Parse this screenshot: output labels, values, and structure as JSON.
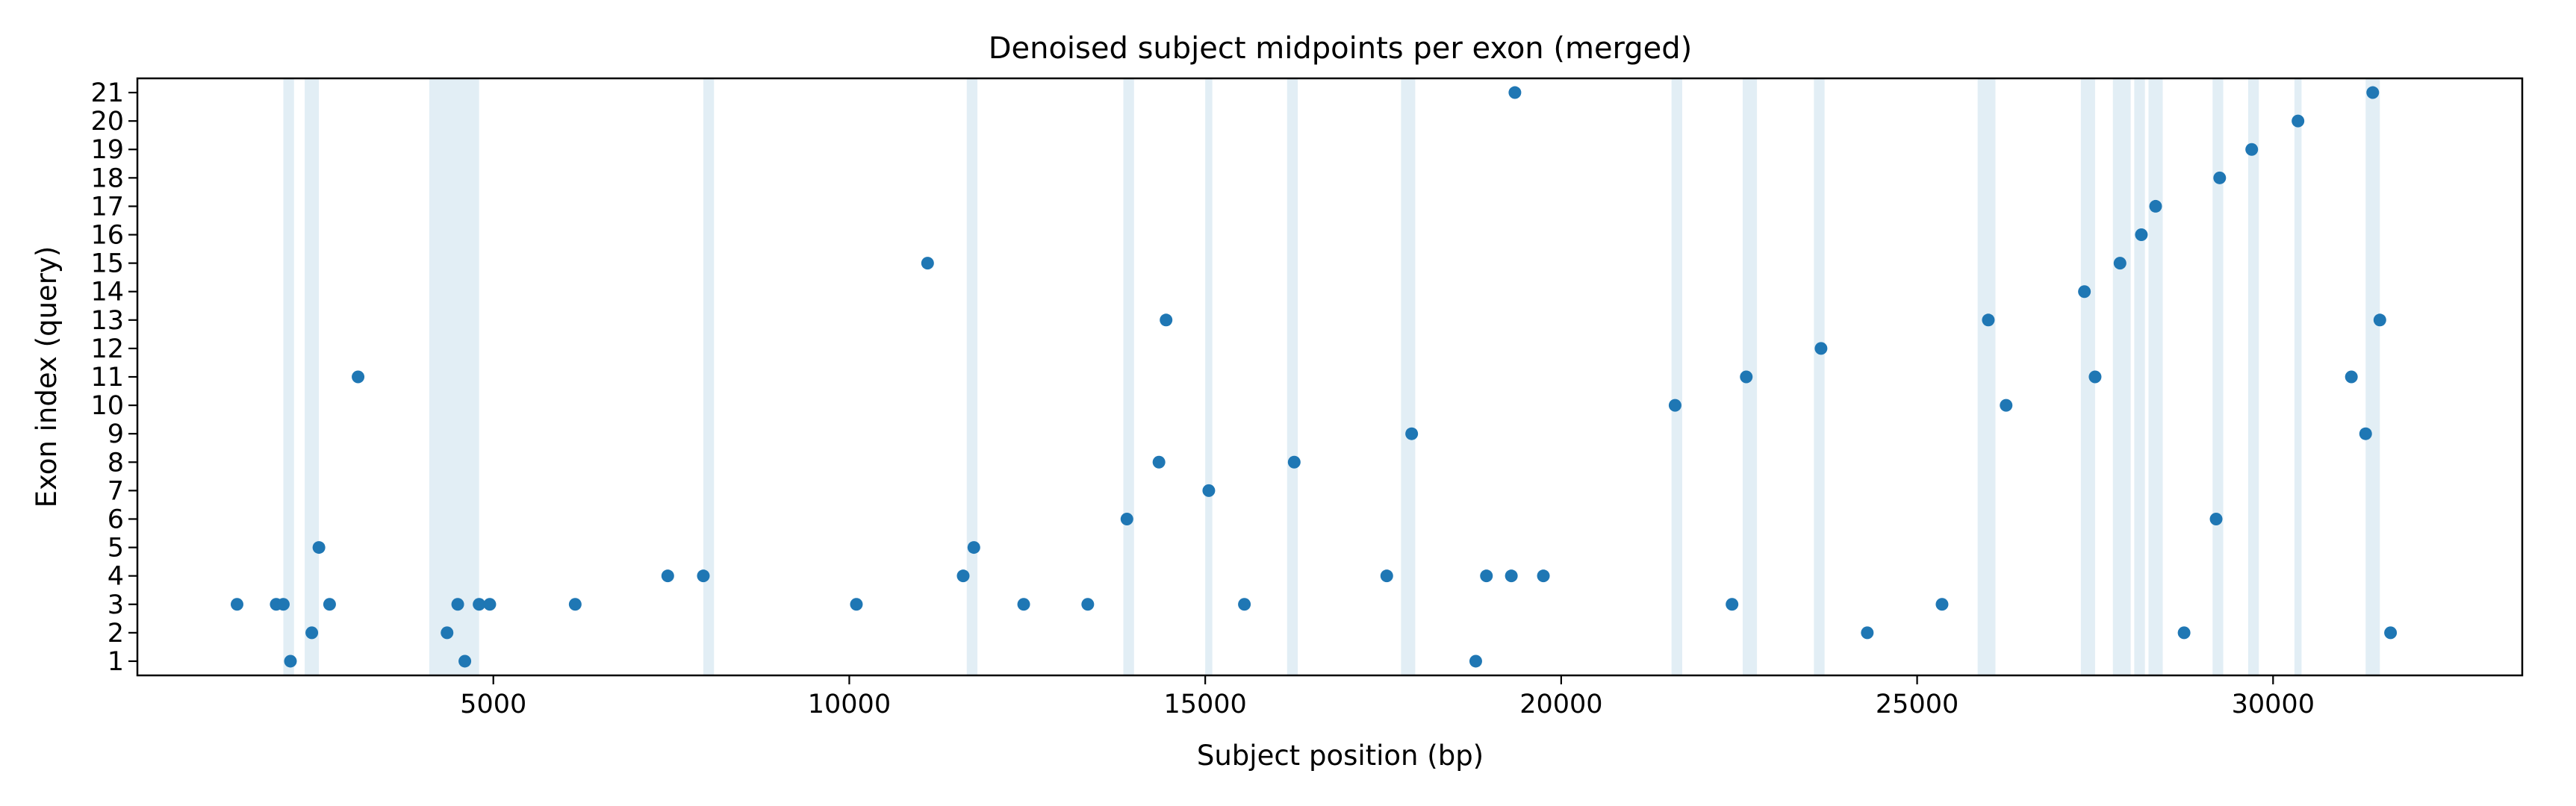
{
  "chart_data": {
    "type": "scatter",
    "title": "Denoised subject midpoints per exon (merged)",
    "xlabel": "Subject position (bp)",
    "ylabel": "Exon index (query)",
    "xlim": [
      0,
      33500
    ],
    "ylim": [
      0.5,
      21.5
    ],
    "xticks": [
      5000,
      10000,
      15000,
      20000,
      25000,
      30000
    ],
    "yticks": [
      1,
      2,
      3,
      4,
      5,
      6,
      7,
      8,
      9,
      10,
      11,
      12,
      13,
      14,
      15,
      16,
      17,
      18,
      19,
      20,
      21
    ],
    "grid": false,
    "legend": "none",
    "point_color": "#1f77b4",
    "band_color": "#cfe2ef",
    "shaded_regions": [
      [
        2050,
        2200
      ],
      [
        2350,
        2550
      ],
      [
        4100,
        4800
      ],
      [
        7950,
        8100
      ],
      [
        11650,
        11800
      ],
      [
        13850,
        14000
      ],
      [
        15000,
        15100
      ],
      [
        16150,
        16300
      ],
      [
        17750,
        17950
      ],
      [
        21550,
        21700
      ],
      [
        22550,
        22750
      ],
      [
        23550,
        23700
      ],
      [
        25850,
        26100
      ],
      [
        27300,
        27500
      ],
      [
        27750,
        28000
      ],
      [
        28050,
        28200
      ],
      [
        28250,
        28450
      ],
      [
        29150,
        29300
      ],
      [
        29650,
        29800
      ],
      [
        30300,
        30400
      ],
      [
        31300,
        31500
      ]
    ],
    "points": [
      {
        "x": 1400,
        "y": 3
      },
      {
        "x": 1950,
        "y": 3
      },
      {
        "x": 2050,
        "y": 3
      },
      {
        "x": 2150,
        "y": 1
      },
      {
        "x": 2450,
        "y": 2
      },
      {
        "x": 2550,
        "y": 5
      },
      {
        "x": 2700,
        "y": 3
      },
      {
        "x": 3100,
        "y": 11
      },
      {
        "x": 4350,
        "y": 2
      },
      {
        "x": 4500,
        "y": 3
      },
      {
        "x": 4600,
        "y": 1
      },
      {
        "x": 4800,
        "y": 3
      },
      {
        "x": 4950,
        "y": 3
      },
      {
        "x": 6150,
        "y": 3
      },
      {
        "x": 7450,
        "y": 4
      },
      {
        "x": 7950,
        "y": 4
      },
      {
        "x": 10100,
        "y": 3
      },
      {
        "x": 11100,
        "y": 15
      },
      {
        "x": 11600,
        "y": 4
      },
      {
        "x": 11750,
        "y": 5
      },
      {
        "x": 12450,
        "y": 3
      },
      {
        "x": 13350,
        "y": 3
      },
      {
        "x": 13900,
        "y": 6
      },
      {
        "x": 14350,
        "y": 8
      },
      {
        "x": 14450,
        "y": 13
      },
      {
        "x": 15050,
        "y": 7
      },
      {
        "x": 15550,
        "y": 3
      },
      {
        "x": 16250,
        "y": 8
      },
      {
        "x": 17550,
        "y": 4
      },
      {
        "x": 17900,
        "y": 9
      },
      {
        "x": 18800,
        "y": 1
      },
      {
        "x": 18950,
        "y": 4
      },
      {
        "x": 19300,
        "y": 4
      },
      {
        "x": 19350,
        "y": 21
      },
      {
        "x": 19750,
        "y": 4
      },
      {
        "x": 21600,
        "y": 10
      },
      {
        "x": 22400,
        "y": 3
      },
      {
        "x": 22600,
        "y": 11
      },
      {
        "x": 23650,
        "y": 12
      },
      {
        "x": 24300,
        "y": 2
      },
      {
        "x": 25350,
        "y": 3
      },
      {
        "x": 26000,
        "y": 13
      },
      {
        "x": 26250,
        "y": 10
      },
      {
        "x": 27350,
        "y": 14
      },
      {
        "x": 27500,
        "y": 11
      },
      {
        "x": 27850,
        "y": 15
      },
      {
        "x": 28150,
        "y": 16
      },
      {
        "x": 28350,
        "y": 17
      },
      {
        "x": 28750,
        "y": 2
      },
      {
        "x": 29200,
        "y": 6
      },
      {
        "x": 29250,
        "y": 18
      },
      {
        "x": 29700,
        "y": 19
      },
      {
        "x": 30350,
        "y": 20
      },
      {
        "x": 31100,
        "y": 11
      },
      {
        "x": 31300,
        "y": 9
      },
      {
        "x": 31400,
        "y": 21
      },
      {
        "x": 31500,
        "y": 13
      },
      {
        "x": 31650,
        "y": 2
      }
    ]
  }
}
